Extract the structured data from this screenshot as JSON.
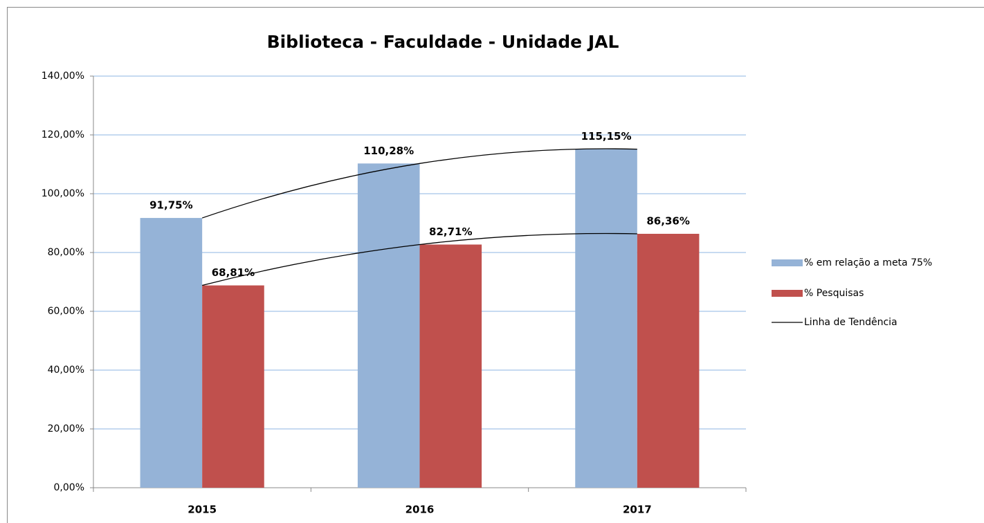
{
  "chart_data": {
    "type": "bar",
    "title": "Biblioteca - Faculdade - Unidade JAL",
    "categories": [
      "2015",
      "2016",
      "2017"
    ],
    "series": [
      {
        "name": "% em relação a meta 75%",
        "color": "#95b3d7",
        "values": [
          91.75,
          110.28,
          115.15
        ],
        "value_labels": [
          "91,75%",
          "110,28%",
          "115,15%"
        ]
      },
      {
        "name": "% Pesquisas",
        "color": "#c0504d",
        "values": [
          68.81,
          82.71,
          86.36
        ],
        "value_labels": [
          "68,81%",
          "82,71%",
          "86,36%"
        ]
      }
    ],
    "trendline": {
      "name": "Linha de Tendência",
      "color": "#000000"
    },
    "ylim": [
      0,
      140
    ],
    "yticks": [
      {
        "value": 0,
        "label": "0,00%"
      },
      {
        "value": 20,
        "label": "20,00%"
      },
      {
        "value": 40,
        "label": "40,00%"
      },
      {
        "value": 60,
        "label": "60,00%"
      },
      {
        "value": 80,
        "label": "80,00%"
      },
      {
        "value": 100,
        "label": "100,00%"
      },
      {
        "value": 120,
        "label": "120,00%"
      },
      {
        "value": 140,
        "label": "140,00%"
      }
    ],
    "grid": true,
    "legend": "right"
  }
}
